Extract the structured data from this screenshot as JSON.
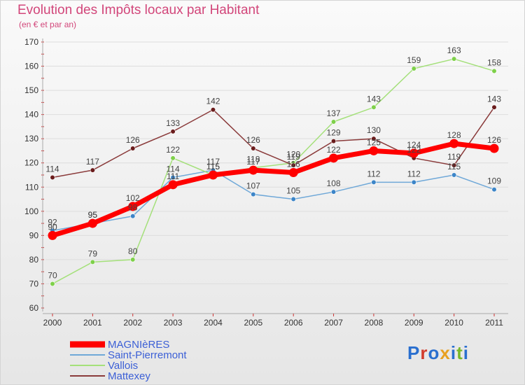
{
  "header": {
    "title": "Evolution des Impôts locaux par Habitant",
    "subtitle": "(en € et par an)"
  },
  "logo": {
    "text": "Proxiti",
    "colors": [
      "#2a6fcf",
      "#d23c2c",
      "#2a6fcf",
      "#e8a020",
      "#2a6fcf",
      "#78b82a",
      "#2a6fcf"
    ]
  },
  "colors": {
    "title": "#d2467a",
    "axis": "#aaaaaa",
    "grid": "#dddddd",
    "tick_mark": "#cc3333"
  },
  "chart_data": {
    "type": "line",
    "title": "Evolution des Impôts locaux par Habitant",
    "subtitle": "(en € et par an)",
    "xlabel": "",
    "ylabel": "",
    "x": [
      2000,
      2001,
      2002,
      2003,
      2004,
      2005,
      2006,
      2007,
      2008,
      2009,
      2010,
      2011
    ],
    "ylim": [
      60,
      170
    ],
    "yticks": [
      60,
      70,
      80,
      90,
      100,
      110,
      120,
      130,
      140,
      150,
      160,
      170
    ],
    "grid": true,
    "legend_position": "bottom-left",
    "series": [
      {
        "name": "MAGNIèRES",
        "color": "#ff0000",
        "dot": "#ff0000",
        "values": [
          90,
          95,
          102,
          111,
          115,
          117,
          116,
          122,
          125,
          124,
          128,
          126
        ]
      },
      {
        "name": "Saint-Pierremont",
        "color": "#6fa8d8",
        "dot": "#3c85c8",
        "values": [
          92,
          95,
          98,
          114,
          117,
          107,
          105,
          108,
          112,
          112,
          115,
          109
        ]
      },
      {
        "name": "Vallois",
        "color": "#a4e07a",
        "dot": "#7ed04a",
        "values": [
          70,
          79,
          80,
          122,
          115,
          118,
          120,
          137,
          143,
          159,
          163,
          158
        ]
      },
      {
        "name": "Mattexey",
        "color": "#8a3a3a",
        "dot": "#6a1c1c",
        "values": [
          114,
          117,
          126,
          133,
          142,
          126,
          119,
          129,
          130,
          122,
          119,
          143
        ]
      }
    ]
  }
}
